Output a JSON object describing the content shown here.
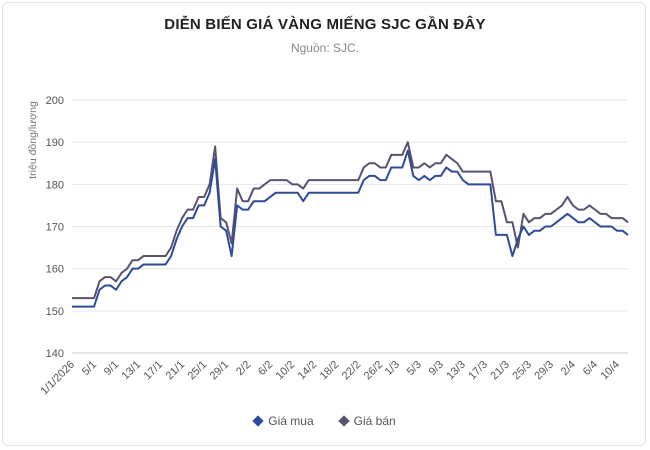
{
  "chart_data": {
    "type": "line",
    "title": "DIỄN BIẾN GIÁ VÀNG MIẾNG SJC GẦN ĐÂY",
    "subtitle": "Nguồn: SJC.",
    "ylabel": "triệu đồng/lượng",
    "xlabel": "",
    "ylim": [
      140,
      200
    ],
    "yticks": [
      140,
      150,
      160,
      170,
      180,
      190,
      200
    ],
    "grid": true,
    "legend_position": "bottom",
    "x": [
      "1/1/2026",
      "2/1",
      "3/1",
      "4/1",
      "5/1",
      "6/1",
      "7/1",
      "8/1",
      "9/1",
      "10/1",
      "11/1",
      "12/1",
      "13/1",
      "14/1",
      "15/1",
      "16/1",
      "17/1",
      "18/1",
      "19/1",
      "20/1",
      "21/1",
      "22/1",
      "23/1",
      "24/1",
      "25/1",
      "26/1",
      "27/1",
      "28/1",
      "29/1",
      "30/1",
      "31/1",
      "1/2",
      "2/2",
      "3/2",
      "4/2",
      "5/2",
      "6/2",
      "7/2",
      "8/2",
      "9/2",
      "10/2",
      "11/2",
      "12/2",
      "13/2",
      "14/2",
      "15/2",
      "16/2",
      "17/2",
      "18/2",
      "19/2",
      "20/2",
      "21/2",
      "22/2",
      "23/2",
      "24/2",
      "25/2",
      "26/2",
      "27/2",
      "28/2",
      "1/3",
      "2/3",
      "3/3",
      "4/3",
      "5/3",
      "6/3",
      "7/3",
      "8/3",
      "9/3",
      "10/3",
      "11/3",
      "12/3",
      "13/3",
      "14/3",
      "15/3",
      "16/3",
      "17/3",
      "18/3",
      "19/3",
      "20/3",
      "21/3",
      "22/3",
      "23/3",
      "24/3",
      "25/3",
      "26/3",
      "27/3",
      "28/3",
      "29/3",
      "30/3",
      "31/3",
      "1/4",
      "2/4",
      "3/4",
      "4/4",
      "5/4",
      "6/4",
      "7/4",
      "8/4",
      "9/4",
      "10/4",
      "11/4",
      "12/4"
    ],
    "x_tick_labels": [
      "1/1/2026",
      "5/1",
      "9/1",
      "13/1",
      "17/1",
      "21/1",
      "25/1",
      "29/1",
      "2/2",
      "6/2",
      "10/2",
      "14/2",
      "18/2",
      "22/2",
      "26/2",
      "1/3",
      "5/3",
      "9/3",
      "13/3",
      "17/3",
      "21/3",
      "25/3",
      "29/3",
      "2/4",
      "6/4",
      "10/4"
    ],
    "series": [
      {
        "name": "Giá mua",
        "color": "#2e4a9a",
        "values": [
          151,
          151,
          151,
          151,
          151,
          155,
          156,
          156,
          155,
          157,
          158,
          160,
          160,
          161,
          161,
          161,
          161,
          161,
          163,
          167,
          170,
          172,
          172,
          175,
          175,
          178,
          186,
          170,
          169,
          163,
          175,
          174,
          174,
          176,
          176,
          176,
          177,
          178,
          178,
          178,
          178,
          178,
          176,
          178,
          178,
          178,
          178,
          178,
          178,
          178,
          178,
          178,
          178,
          181,
          182,
          182,
          181,
          181,
          184,
          184,
          184,
          188,
          182,
          181,
          182,
          181,
          182,
          182,
          184,
          183,
          183,
          181,
          180,
          180,
          180,
          180,
          180,
          168,
          168,
          168,
          163,
          167,
          170,
          168,
          169,
          169,
          170,
          170,
          171,
          172,
          173,
          172,
          171,
          171,
          172,
          171,
          170,
          170,
          170,
          169,
          169,
          168
        ]
      },
      {
        "name": "Giá bán",
        "color": "#5a5270",
        "values": [
          153,
          153,
          153,
          153,
          153,
          157,
          158,
          158,
          157,
          159,
          160,
          162,
          162,
          163,
          163,
          163,
          163,
          163,
          165,
          169,
          172,
          174,
          174,
          177,
          177,
          180,
          189,
          172,
          171,
          166,
          179,
          176,
          176,
          179,
          179,
          180,
          181,
          181,
          181,
          181,
          180,
          180,
          179,
          181,
          181,
          181,
          181,
          181,
          181,
          181,
          181,
          181,
          181,
          184,
          185,
          185,
          184,
          184,
          187,
          187,
          187,
          190,
          184,
          184,
          185,
          184,
          185,
          185,
          187,
          186,
          185,
          183,
          183,
          183,
          183,
          183,
          183,
          176,
          176,
          171,
          171,
          165,
          173,
          171,
          172,
          172,
          173,
          173,
          174,
          175,
          177,
          175,
          174,
          174,
          175,
          174,
          173,
          173,
          172,
          172,
          172,
          171
        ]
      }
    ]
  }
}
